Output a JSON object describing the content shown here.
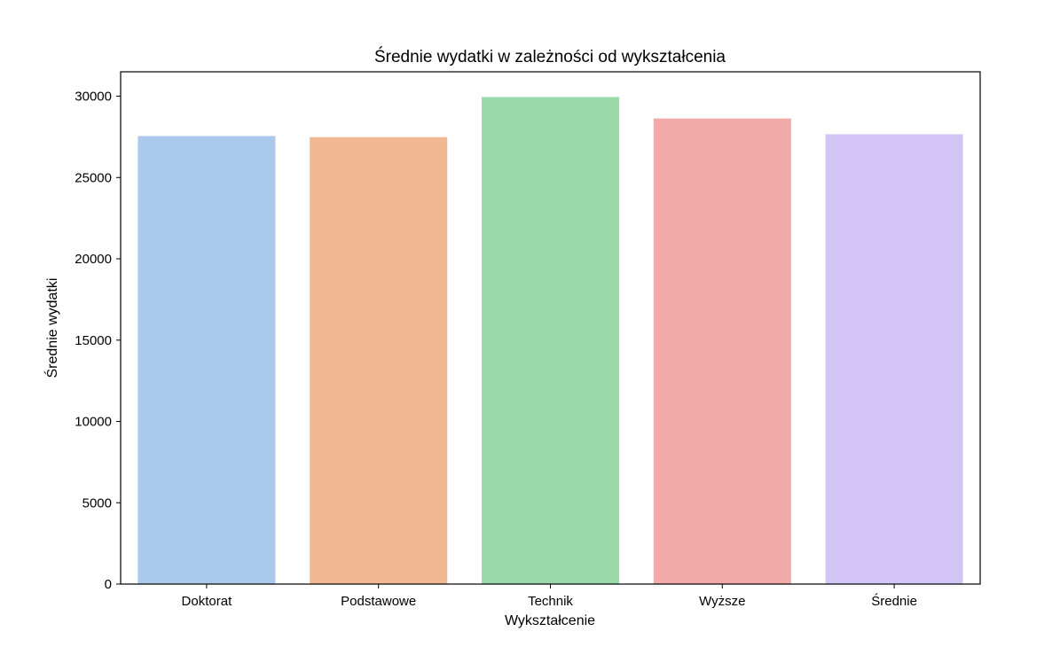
{
  "chart_data": {
    "type": "bar",
    "title": "Średnie wydatki w zależności od wykształcenia",
    "xlabel": "Wykształcenie",
    "ylabel": "Średnie wydatki",
    "categories": [
      "Doktorat",
      "Podstawowe",
      "Technik",
      "Wyższe",
      "Średnie"
    ],
    "values": [
      27550,
      27480,
      29950,
      28630,
      27660
    ],
    "colors": [
      "#abc9ed",
      "#f0b893",
      "#9ad9aa",
      "#f1aaa8",
      "#d2c5f6"
    ],
    "ylim": [
      0,
      31500
    ],
    "yticks": [
      0,
      5000,
      10000,
      15000,
      20000,
      25000,
      30000
    ],
    "ytick_labels": [
      "0",
      "5000",
      "10000",
      "15000",
      "20000",
      "25000",
      "30000"
    ],
    "grid": false,
    "legend": "none"
  }
}
